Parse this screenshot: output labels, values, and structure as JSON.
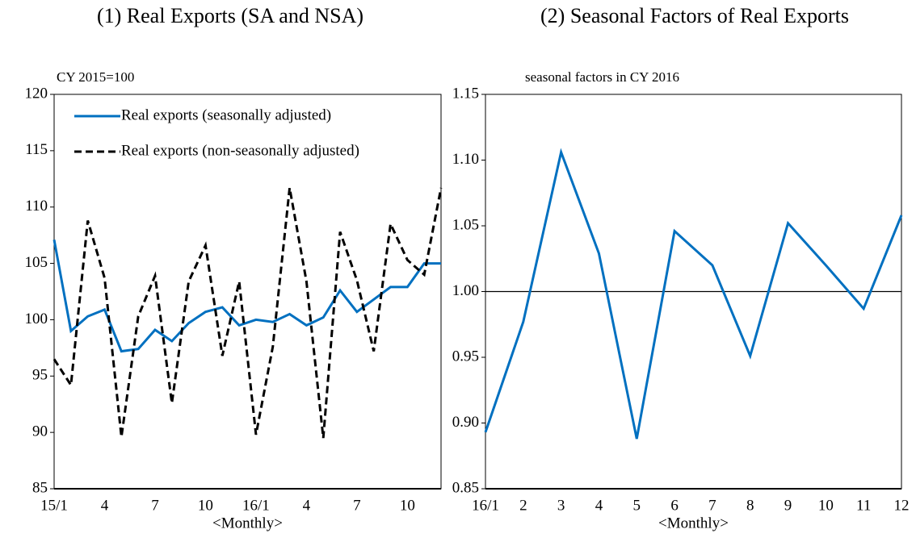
{
  "chart_data": [
    {
      "type": "line",
      "title": "(1) Real Exports (SA and NSA)",
      "unit_label": "CY 2015=100",
      "xlabel": "<Monthly>",
      "categories": [
        "15/1",
        null,
        null,
        "4",
        null,
        null,
        "7",
        null,
        null,
        "10",
        null,
        null,
        "16/1",
        null,
        null,
        "4",
        null,
        null,
        "7",
        null,
        null,
        "10",
        null,
        null
      ],
      "series": [
        {
          "name": "Real exports (seasonally adjusted)",
          "color": "#0070c0",
          "dash": "solid",
          "values": [
            107.1,
            99.0,
            100.3,
            100.9,
            97.2,
            97.4,
            99.1,
            98.1,
            99.7,
            100.7,
            101.1,
            99.5,
            100.0,
            99.8,
            100.5,
            99.5,
            100.2,
            102.6,
            100.7,
            101.8,
            102.9,
            102.9,
            105.0,
            105.0
          ]
        },
        {
          "name": "Real exports (non-seasonally adjusted)",
          "color": "#000000",
          "dash": "dashed",
          "values": [
            96.5,
            94.2,
            108.8,
            103.7,
            89.6,
            100.3,
            103.9,
            92.6,
            103.4,
            106.6,
            96.8,
            103.4,
            89.8,
            97.6,
            111.7,
            103.4,
            89.5,
            107.8,
            103.5,
            97.2,
            108.5,
            105.3,
            104.0,
            111.7
          ]
        }
      ],
      "ylim": [
        85,
        120
      ],
      "yticks": [
        85,
        90,
        95,
        100,
        105,
        110,
        115,
        120
      ],
      "legend": "upper left"
    },
    {
      "type": "line",
      "title": "(2) Seasonal Factors of Real Exports",
      "unit_label": "seasonal factors in CY 2016",
      "xlabel": "<Monthly>",
      "categories": [
        "16/1",
        "2",
        "3",
        "4",
        "5",
        "6",
        "7",
        "8",
        "9",
        "10",
        "11",
        "12"
      ],
      "series": [
        {
          "name": "seasonal factors",
          "color": "#0070c0",
          "dash": "solid",
          "values": [
            0.893,
            0.977,
            1.106,
            1.029,
            0.888,
            1.046,
            1.02,
            0.951,
            1.052,
            1.02,
            0.987,
            1.058
          ]
        }
      ],
      "ylim": [
        0.85,
        1.15
      ],
      "yticks": [
        0.85,
        {
          "value": 0.9,
          "label": "0.90"
        },
        0.95,
        {
          "value": 1.0,
          "label": "1.00"
        },
        1.05,
        {
          "value": 1.1,
          "label": "1.10"
        },
        1.15
      ],
      "reference_line": 1.0
    }
  ]
}
